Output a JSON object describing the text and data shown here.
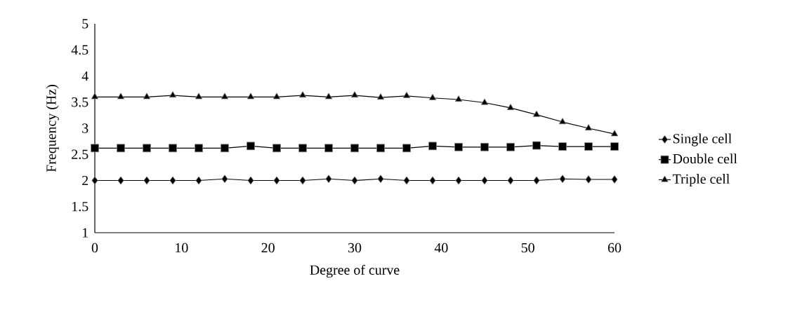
{
  "chart_data": {
    "type": "line",
    "xlabel": "Degree of curve",
    "ylabel": "Frequency (Hz)",
    "x": [
      0,
      3,
      6,
      9,
      12,
      15,
      18,
      21,
      24,
      27,
      30,
      33,
      36,
      39,
      42,
      45,
      48,
      51,
      54,
      57,
      60
    ],
    "series": [
      {
        "name": "Single cell",
        "color": "#000000",
        "marker": "diamond",
        "values": [
          2,
          2,
          2,
          2,
          2,
          2.03,
          2,
          2,
          2,
          2.03,
          2,
          2.03,
          2,
          2,
          2,
          2,
          2,
          2,
          2.03,
          2.02,
          2.02
        ]
      },
      {
        "name": "Double cell",
        "color": "#000000",
        "marker": "square",
        "values": [
          2.62,
          2.62,
          2.62,
          2.62,
          2.62,
          2.62,
          2.66,
          2.62,
          2.62,
          2.62,
          2.62,
          2.62,
          2.62,
          2.66,
          2.64,
          2.64,
          2.64,
          2.67,
          2.65,
          2.65,
          2.65
        ]
      },
      {
        "name": "Triple cell",
        "color": "#000000",
        "marker": "triangle",
        "values": [
          3.6,
          3.6,
          3.6,
          3.63,
          3.6,
          3.6,
          3.6,
          3.6,
          3.63,
          3.6,
          3.63,
          3.59,
          3.62,
          3.58,
          3.55,
          3.49,
          3.39,
          3.26,
          3.12,
          3.0,
          2.89
        ]
      }
    ],
    "xlim": [
      0,
      60
    ],
    "xticks": [
      0,
      10,
      20,
      30,
      40,
      50,
      60
    ],
    "ylim": [
      1,
      5
    ],
    "yticks": [
      1,
      {
        "value": 1.5,
        "label": "1.5"
      },
      2,
      {
        "value": 2.5,
        "label": "2.5"
      },
      3,
      {
        "value": 3.5,
        "label": "3.5"
      },
      4,
      {
        "value": 4.5,
        "label": "4.5"
      },
      5
    ],
    "grid": false,
    "legend": "right",
    "line_style": "solid"
  }
}
